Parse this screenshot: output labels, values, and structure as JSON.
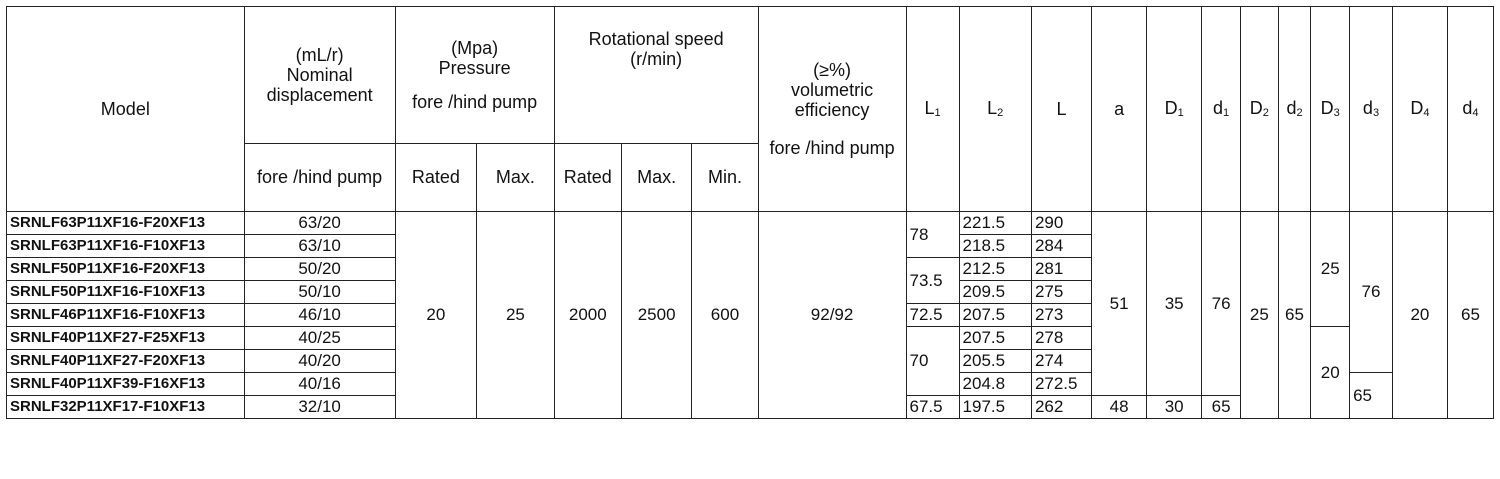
{
  "headers": {
    "model": "Model",
    "displacement_unit": "(mL/r)",
    "displacement_label": "Nominal displacement",
    "fore_hind": "fore /hind pump",
    "pressure_unit": "(Mpa)",
    "pressure_label": "Pressure",
    "pressure_sub": "fore /hind pump",
    "rotation_label": "Rotational speed",
    "rotation_unit": "(r/min)",
    "rated": "Rated",
    "max": "Max.",
    "min": "Min.",
    "efficiency_unit": "(≥%)",
    "efficiency_label": "volumetric efficiency",
    "efficiency_sub": "fore  /hind pump",
    "dims": {
      "L1": {
        "base": "L",
        "sub": "1"
      },
      "L2": {
        "base": "L",
        "sub": "2"
      },
      "L": {
        "base": "L",
        "sub": ""
      },
      "a": {
        "base": "a",
        "sub": ""
      },
      "D1": {
        "base": "D",
        "sub": "1"
      },
      "d1": {
        "base": "d",
        "sub": "1"
      },
      "D2": {
        "base": "D",
        "sub": "2"
      },
      "d2": {
        "base": "d",
        "sub": "2"
      },
      "D3": {
        "base": "D",
        "sub": "3"
      },
      "d3": {
        "base": "d",
        "sub": "3"
      },
      "D4": {
        "base": "D",
        "sub": "4"
      },
      "d4": {
        "base": "d",
        "sub": "4"
      }
    }
  },
  "rows": [
    {
      "model": "SRNLF63P11XF16-F20XF13",
      "displacement": "63/20",
      "L2": "221.5",
      "L": "290"
    },
    {
      "model": "SRNLF63P11XF16-F10XF13",
      "displacement": "63/10",
      "L2": "218.5",
      "L": "284"
    },
    {
      "model": "SRNLF50P11XF16-F20XF13",
      "displacement": "50/20",
      "L2": "212.5",
      "L": "281"
    },
    {
      "model": "SRNLF50P11XF16-F10XF13",
      "displacement": "50/10",
      "L2": "209.5",
      "L": "275"
    },
    {
      "model": "SRNLF46P11XF16-F10XF13",
      "displacement": "46/10",
      "L2": "207.5",
      "L": "273"
    },
    {
      "model": "SRNLF40P11XF27-F25XF13",
      "displacement": "40/25",
      "L2": "207.5",
      "L": "278"
    },
    {
      "model": "SRNLF40P11XF27-F20XF13",
      "displacement": "40/20",
      "L2": "205.5",
      "L": "274"
    },
    {
      "model": "SRNLF40P11XF39-F16XF13",
      "displacement": "40/16",
      "L2": "204.8",
      "L": "272.5"
    },
    {
      "model": "SRNLF32P11XF17-F10XF13",
      "displacement": "32/10",
      "L2": "197.5",
      "L": "262"
    }
  ],
  "merged": {
    "pressure_rated": "20",
    "pressure_max": "25",
    "speed_rated": "2000",
    "speed_max": "2500",
    "speed_min": "600",
    "efficiency": "92/92",
    "L1_a": "78",
    "L1_b": "73.5",
    "L1_c": "72.5",
    "L1_d": "70",
    "L1_e": "67.5",
    "a_main": "51",
    "a_last": "48",
    "D1_main": "35",
    "D1_last": "30",
    "d1_main": "76",
    "d1_last": "65",
    "D2": "25",
    "d2": "65",
    "D3_a": "25",
    "D3_b": "20",
    "d3_a": "76",
    "d3_b": "65",
    "D4": "20",
    "d4": "65"
  }
}
